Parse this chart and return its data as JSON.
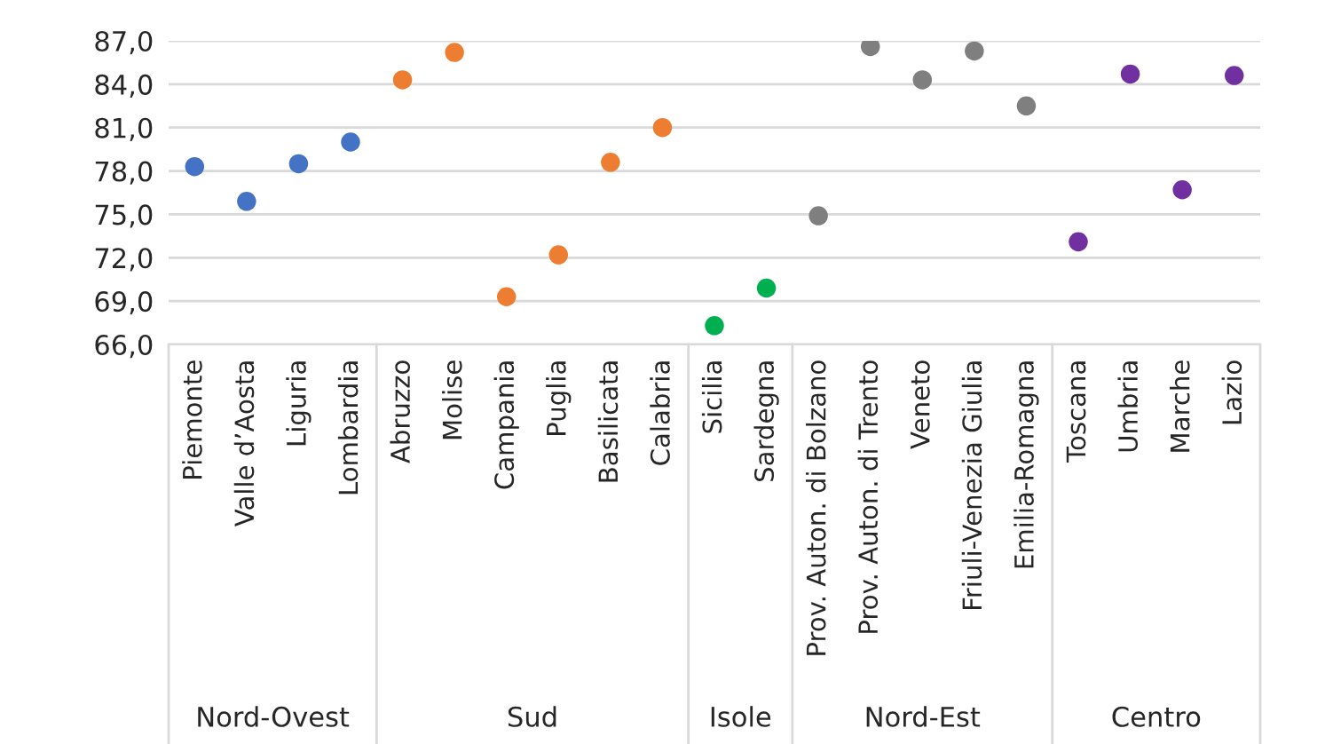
{
  "chart_data": {
    "type": "scatter",
    "categories": [
      "Piemonte",
      "Valle d’Aosta",
      "Liguria",
      "Lombardia",
      "Abruzzo",
      "Molise",
      "Campania",
      "Puglia",
      "Basilicata",
      "Calabria",
      "Sicilia",
      "Sardegna",
      "Prov. Auton. di Bolzano",
      "Prov. Auton. di Trento",
      "Veneto",
      "Friuli-Venezia Giulia",
      "Emilia-Romagna",
      "Toscana",
      "Umbria",
      "Marche",
      "Lazio"
    ],
    "series": [
      {
        "color": "#4472c4",
        "values": [
          78.3,
          75.9,
          78.5,
          80.0,
          null,
          null,
          null,
          null,
          null,
          null,
          null,
          null,
          null,
          null,
          null,
          null,
          null,
          null,
          null,
          null,
          null
        ]
      },
      {
        "color": "#ed7d31",
        "values": [
          null,
          null,
          null,
          null,
          84.3,
          86.2,
          69.3,
          72.2,
          78.6,
          81.0,
          null,
          null,
          null,
          null,
          null,
          null,
          null,
          null,
          null,
          null,
          null
        ]
      },
      {
        "color": "#00b050",
        "values": [
          null,
          null,
          null,
          null,
          null,
          null,
          null,
          null,
          null,
          null,
          67.3,
          69.9,
          null,
          null,
          null,
          null,
          null,
          null,
          null,
          null,
          null
        ]
      },
      {
        "color": "#7f7f7f",
        "values": [
          null,
          null,
          null,
          null,
          null,
          null,
          null,
          null,
          null,
          null,
          null,
          null,
          74.9,
          86.6,
          84.3,
          86.3,
          82.5,
          null,
          null,
          null,
          null
        ]
      },
      {
        "color": "#7030a0",
        "values": [
          null,
          null,
          null,
          null,
          null,
          null,
          null,
          null,
          null,
          null,
          null,
          null,
          null,
          null,
          null,
          null,
          null,
          73.1,
          84.7,
          76.7,
          84.6
        ]
      }
    ],
    "ylim": [
      66,
      87
    ],
    "yticks": [
      {
        "value": 66,
        "label": "66,0"
      },
      {
        "value": 69,
        "label": "69,0"
      },
      {
        "value": 72,
        "label": "72,0"
      },
      {
        "value": 75,
        "label": "75,0"
      },
      {
        "value": 78,
        "label": "78,0"
      },
      {
        "value": 81,
        "label": "81,0"
      },
      {
        "value": 84,
        "label": "84,0"
      },
      {
        "value": 87,
        "label": "87,0"
      }
    ],
    "annotations": [
      "Nord-Ovest",
      "Sud",
      "Isole",
      "Nord-Est",
      "Centro"
    ],
    "grid": "y",
    "legend": false,
    "marker": "circle"
  }
}
